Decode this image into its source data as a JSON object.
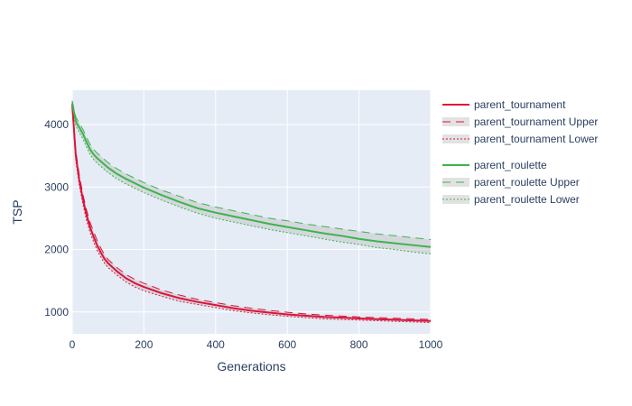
{
  "chart_data": {
    "type": "line",
    "title": "",
    "xlabel": "Generations",
    "ylabel": "TSP",
    "xlim": [
      0,
      1000
    ],
    "ylim": [
      650,
      4550
    ],
    "xticks": [
      0,
      200,
      400,
      600,
      800,
      1000
    ],
    "yticks": [
      1000,
      2000,
      3000,
      4000
    ],
    "grid": true,
    "legend_position": "right",
    "x": [
      0,
      10,
      20,
      30,
      40,
      50,
      60,
      70,
      80,
      90,
      100,
      125,
      150,
      175,
      200,
      250,
      300,
      350,
      400,
      450,
      500,
      550,
      600,
      650,
      700,
      750,
      800,
      850,
      900,
      950,
      1000
    ],
    "series": [
      {
        "name": "parent_tournament",
        "color": "#dc143c",
        "style": "solid",
        "values": [
          4320,
          3500,
          3100,
          2800,
          2550,
          2350,
          2200,
          2060,
          1950,
          1850,
          1780,
          1650,
          1540,
          1460,
          1400,
          1300,
          1220,
          1160,
          1110,
          1060,
          1020,
          990,
          960,
          940,
          920,
          910,
          895,
          885,
          875,
          865,
          855
        ]
      },
      {
        "name": "parent_tournament Upper",
        "color": "#dc143c",
        "style": "dash",
        "values": [
          4380,
          3580,
          3180,
          2880,
          2630,
          2430,
          2280,
          2140,
          2020,
          1920,
          1840,
          1710,
          1600,
          1520,
          1460,
          1350,
          1270,
          1200,
          1150,
          1100,
          1060,
          1025,
          995,
          970,
          950,
          935,
          920,
          910,
          900,
          890,
          880
        ]
      },
      {
        "name": "parent_tournament Lower",
        "color": "#dc143c",
        "style": "dot",
        "values": [
          4260,
          3420,
          3020,
          2720,
          2470,
          2270,
          2120,
          1980,
          1880,
          1780,
          1710,
          1590,
          1480,
          1400,
          1340,
          1250,
          1170,
          1120,
          1070,
          1020,
          985,
          955,
          930,
          910,
          890,
          880,
          870,
          860,
          850,
          840,
          830
        ]
      },
      {
        "name": "parent_roulette",
        "color": "#3cb44b",
        "style": "solid",
        "values": [
          4340,
          4050,
          3950,
          3850,
          3720,
          3600,
          3520,
          3460,
          3410,
          3360,
          3310,
          3210,
          3130,
          3060,
          2990,
          2870,
          2760,
          2660,
          2590,
          2530,
          2470,
          2410,
          2360,
          2310,
          2260,
          2220,
          2170,
          2130,
          2100,
          2070,
          2040
        ]
      },
      {
        "name": "parent_roulette Upper",
        "color": "#3cb44b",
        "style": "dash",
        "values": [
          4380,
          4120,
          4020,
          3920,
          3800,
          3680,
          3600,
          3540,
          3490,
          3440,
          3390,
          3290,
          3210,
          3140,
          3070,
          2950,
          2850,
          2750,
          2680,
          2620,
          2560,
          2500,
          2460,
          2410,
          2370,
          2330,
          2290,
          2250,
          2220,
          2190,
          2160
        ]
      },
      {
        "name": "parent_roulette Lower",
        "color": "#3cb44b",
        "style": "dot",
        "values": [
          4300,
          3980,
          3870,
          3770,
          3640,
          3520,
          3440,
          3380,
          3330,
          3280,
          3230,
          3130,
          3050,
          2980,
          2910,
          2790,
          2680,
          2580,
          2500,
          2440,
          2380,
          2320,
          2270,
          2220,
          2170,
          2120,
          2080,
          2030,
          2000,
          1960,
          1930
        ]
      }
    ]
  }
}
